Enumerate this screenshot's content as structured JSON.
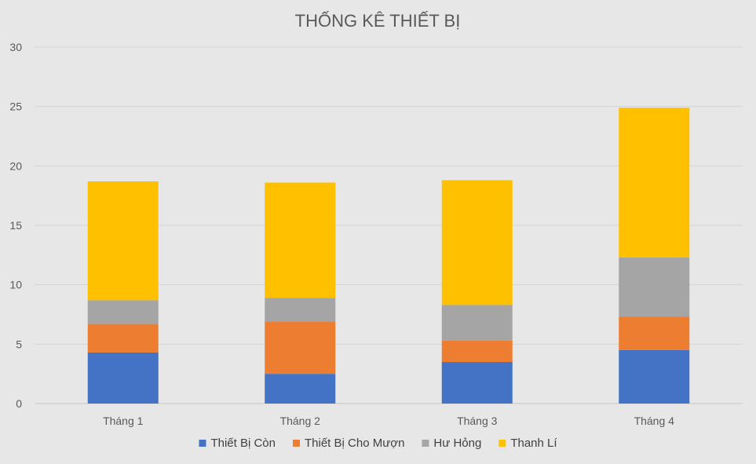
{
  "chart_data": {
    "type": "bar",
    "stacked": true,
    "title": "THỐNG KÊ THIẾT BỊ",
    "xlabel": "",
    "ylabel": "",
    "categories": [
      "Tháng 1",
      "Tháng 2",
      "Tháng 3",
      "Tháng 4"
    ],
    "ylim": [
      0,
      30
    ],
    "yticks": [
      0,
      5,
      10,
      15,
      20,
      25,
      30
    ],
    "grid": true,
    "legend_position": "bottom",
    "series": [
      {
        "name": "Thiết Bị Còn",
        "color": "#4472c4",
        "values": [
          4.3,
          2.5,
          3.5,
          4.5
        ]
      },
      {
        "name": "Thiết Bị Cho Mượn",
        "color": "#ed7d31",
        "values": [
          2.4,
          4.4,
          1.8,
          2.8
        ]
      },
      {
        "name": "Hư Hỏng",
        "color": "#a5a5a5",
        "values": [
          2.0,
          2.0,
          3.0,
          5.0
        ]
      },
      {
        "name": "Thanh Lí",
        "color": "#ffc000",
        "values": [
          10.0,
          9.7,
          10.5,
          12.6
        ]
      }
    ]
  }
}
